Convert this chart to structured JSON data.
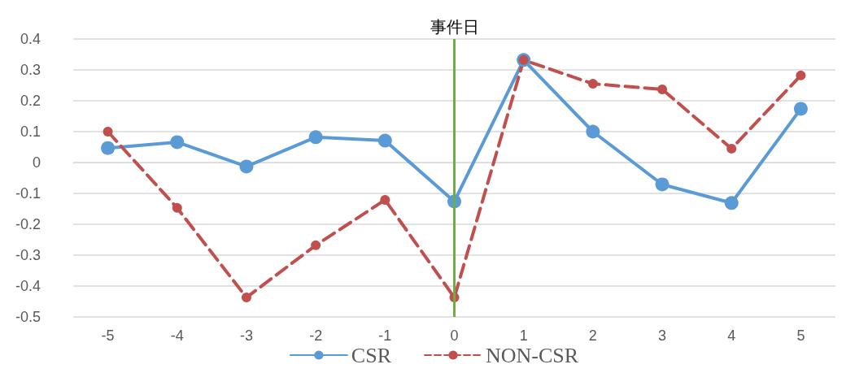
{
  "chart_data": {
    "type": "line",
    "categories": [
      "-5",
      "-4",
      "-3",
      "-2",
      "-1",
      "0",
      "1",
      "2",
      "3",
      "4",
      "5"
    ],
    "series": [
      {
        "name": "CSR",
        "color": "#5b9bd5",
        "values": [
          0.047,
          0.066,
          -0.013,
          0.082,
          0.071,
          -0.126,
          0.332,
          0.1,
          -0.071,
          -0.131,
          0.174
        ],
        "line_style": "solid"
      },
      {
        "name": "NON-CSR",
        "color": "#c0504d",
        "values": [
          0.1,
          -0.147,
          -0.437,
          -0.268,
          -0.121,
          -0.437,
          0.332,
          0.255,
          0.237,
          0.045,
          0.282
        ],
        "line_style": "dashed"
      }
    ],
    "ylim": [
      -0.5,
      0.4
    ],
    "yticks": [
      -0.5,
      -0.4,
      -0.3,
      -0.2,
      -0.1,
      0,
      0.1,
      0.2,
      0.3,
      0.4
    ],
    "grid": "y",
    "legend": "bottom",
    "marker": "circle",
    "ref_lines": [
      {
        "axis": "x",
        "value": "0",
        "label": "事件日",
        "color": "#70ad47"
      }
    ]
  }
}
